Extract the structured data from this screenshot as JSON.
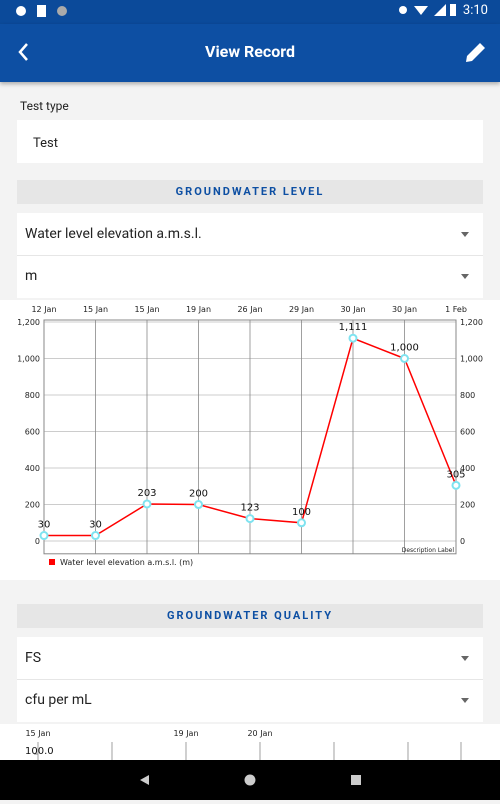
{
  "status_bar": {
    "time": "3:10"
  },
  "app_bar": {
    "title": "View Record"
  },
  "test_type": {
    "label": "Test type",
    "value": "Test"
  },
  "groundwater_level": {
    "heading": "GROUNDWATER LEVEL",
    "parameter": "Water level elevation a.m.s.l.",
    "unit": "m",
    "chart": {
      "type": "line",
      "categories": [
        "12 Jan",
        "15 Jan",
        "15 Jan",
        "19 Jan",
        "26 Jan",
        "29 Jan",
        "30 Jan",
        "30 Jan",
        "1 Feb"
      ],
      "series": [
        {
          "name": "Water level elevation a.m.s.l. (m)",
          "color": "#ff0000",
          "values": [
            30,
            30,
            203,
            200,
            123,
            100,
            1111,
            1000,
            305
          ],
          "value_labels": [
            "30",
            "30",
            "203",
            "200",
            "123",
            "100",
            "1,111",
            "1,000",
            "305"
          ]
        }
      ],
      "ylim": [
        -70,
        1200
      ],
      "yticks": [
        0,
        200,
        400,
        600,
        800,
        {
          "value": 1000,
          "label": "1,000"
        },
        {
          "value": 1200,
          "label": "1,200"
        }
      ],
      "grid": true,
      "description": "Description Label"
    }
  },
  "groundwater_quality": {
    "heading": "GROUNDWATER QUALITY",
    "parameter": "FS",
    "unit": "cfu per mL",
    "chart": {
      "type": "line",
      "categories": [
        "15 Jan",
        null,
        "19 Jan",
        "20 Jan",
        null,
        null
      ],
      "yticks": [
        {
          "value": 100,
          "label": "100.0"
        }
      ]
    }
  }
}
